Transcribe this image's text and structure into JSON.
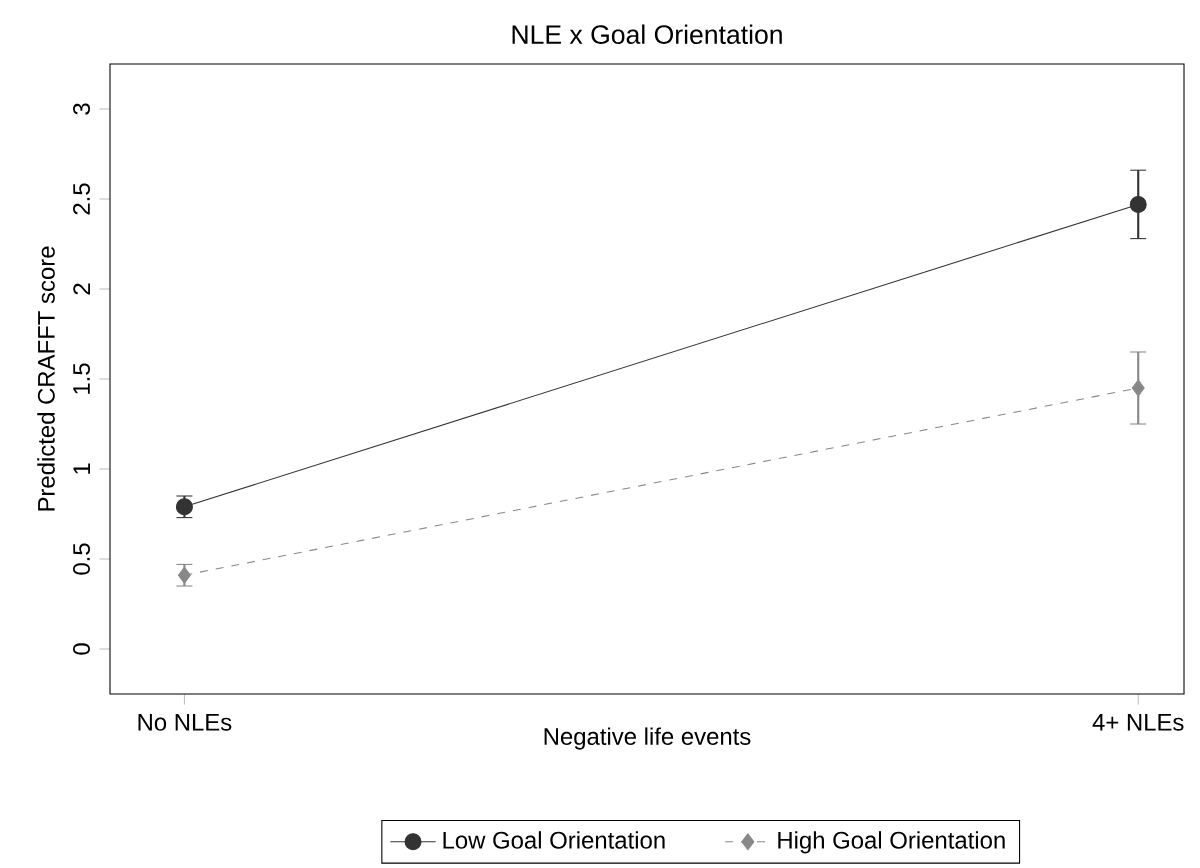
{
  "chart_data": {
    "type": "line",
    "title": "NLE x Goal Orientation",
    "xlabel": "Negative life events",
    "ylabel": "Predicted CRAFFT score",
    "categories": [
      "No NLEs",
      "4+ NLEs"
    ],
    "series": [
      {
        "name": "Low Goal Orientation",
        "color": "#333333",
        "values": [
          0.79,
          2.47
        ],
        "errors": [
          0.06,
          0.19
        ],
        "marker": "circle",
        "line_style": "solid"
      },
      {
        "name": "High Goal Orientation",
        "color": "#888888",
        "values": [
          0.41,
          1.45
        ],
        "errors": [
          0.06,
          0.2
        ],
        "marker": "diamond",
        "line_style": "dashed"
      }
    ],
    "ylim": [
      -0.25,
      3.25
    ],
    "yticks": [
      0,
      0.5,
      1,
      1.5,
      2,
      2.5,
      3
    ],
    "grid": false,
    "legend": "bottom"
  }
}
